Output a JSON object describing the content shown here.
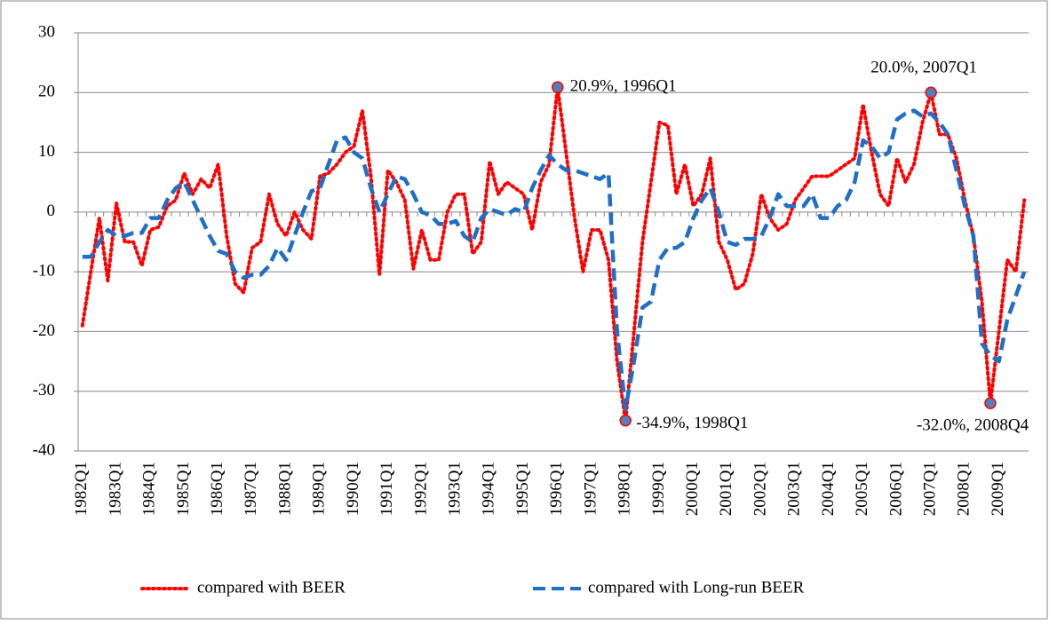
{
  "chart_data": {
    "type": "line",
    "categories": [
      "1982Q1",
      null,
      null,
      null,
      "1983Q1",
      null,
      null,
      null,
      "1984Q1",
      null,
      null,
      null,
      "1985Q1",
      null,
      null,
      null,
      "1986Q1",
      null,
      null,
      null,
      "1987Q1",
      null,
      null,
      null,
      "1988Q1",
      null,
      null,
      null,
      "1989Q1",
      null,
      null,
      null,
      "1990Q1",
      null,
      null,
      null,
      "1991Q1",
      null,
      null,
      null,
      "1992Q1",
      null,
      null,
      null,
      "1993Q1",
      null,
      null,
      null,
      "1994Q1",
      null,
      null,
      null,
      "1995Q1",
      null,
      null,
      null,
      "1996Q1",
      null,
      null,
      null,
      "1997Q1",
      null,
      null,
      null,
      "1998Q1",
      null,
      null,
      null,
      "1999Q1",
      null,
      null,
      null,
      "2000Q1",
      null,
      null,
      null,
      "2001Q1",
      null,
      null,
      null,
      "2002Q1",
      null,
      null,
      null,
      "2003Q1",
      null,
      null,
      null,
      "2004Q1",
      null,
      null,
      null,
      "2005Q1",
      null,
      null,
      null,
      "2006Q1",
      null,
      null,
      null,
      "2007Q1",
      null,
      null,
      null,
      "2008Q1",
      null,
      null,
      null,
      "2009Q1",
      null,
      null,
      null
    ],
    "series": [
      {
        "name": "compared with BEER",
        "color": "#ff0000",
        "dash": "dotted",
        "values": [
          -19,
          -10,
          -1,
          -11.5,
          1.5,
          -5,
          -5,
          -9,
          -3,
          -2.5,
          1,
          2,
          6.5,
          3,
          5.5,
          4,
          8,
          -4,
          -12,
          -13.5,
          -6,
          -5,
          3,
          -2,
          -4,
          0,
          -3,
          -4.5,
          6,
          6.5,
          8,
          10,
          11,
          17,
          6,
          -10.5,
          7,
          5,
          2,
          -9.5,
          -3,
          -8,
          -8,
          0,
          3,
          3,
          -7,
          -5,
          8.5,
          3,
          5,
          4,
          3,
          -3,
          5,
          8,
          20.9,
          10,
          -1,
          -10,
          -3,
          -3,
          -8,
          -25,
          -34.9,
          -20,
          -5,
          5,
          15,
          14.5,
          3,
          8,
          1,
          3,
          9,
          -5,
          -8,
          -13,
          -12,
          -7,
          3,
          -1,
          -3,
          -2,
          2,
          4,
          6,
          6,
          6,
          7,
          8,
          9,
          18,
          10,
          3,
          1,
          9,
          5,
          8,
          15,
          20.0,
          13,
          13,
          9,
          2,
          -4,
          -15,
          -32.0,
          -20,
          -8,
          -10,
          2
        ]
      },
      {
        "name": "compared with Long-run BEER",
        "color": "#1f6fc5",
        "dash": "dashed",
        "values": [
          -7.5,
          -7.5,
          -5,
          -3,
          -4,
          -4,
          -3.5,
          -3.5,
          -1,
          -1,
          2,
          4,
          5,
          2,
          -1,
          -4,
          -6.5,
          -7,
          -10,
          -11,
          -10.5,
          -10.5,
          -9,
          -6,
          -8,
          -4,
          0,
          3.5,
          4,
          8,
          12,
          12.5,
          10,
          9,
          4,
          0,
          3,
          6,
          5.5,
          3,
          0,
          -0.5,
          -2,
          -2,
          -1.5,
          -4,
          -5,
          -1,
          0.5,
          0,
          -0.5,
          0.5,
          0,
          4,
          7,
          9.5,
          8,
          7,
          7,
          6.5,
          6,
          5.5,
          6.5,
          -20,
          -33,
          -25,
          -16,
          -15,
          -8,
          -6,
          -6,
          -5,
          -1,
          2,
          4,
          0,
          -5,
          -5.5,
          -4.5,
          -4.5,
          -4,
          -1,
          3,
          1,
          1,
          1,
          3,
          -1,
          -1,
          1,
          2,
          5,
          12,
          11,
          9,
          10,
          15.5,
          16.5,
          17,
          16,
          16.5,
          15,
          13,
          7,
          1,
          -4,
          -22,
          -24,
          -25,
          -18,
          -14,
          -10
        ]
      }
    ],
    "annotations": [
      {
        "text": "20.9%, 1996Q1",
        "value": 20.9
      },
      {
        "text": "-34.9%, 1998Q1",
        "value": -34.9
      },
      {
        "text": "20.0%, 2007Q1",
        "value": 20.0
      },
      {
        "text": "-32.0%, 2008Q4",
        "value": -32.0
      }
    ],
    "ylim": [
      -40,
      30
    ],
    "yticks": [
      -40,
      -30,
      -20,
      -10,
      0,
      10,
      20,
      30
    ],
    "grid": true,
    "legend": "bottom"
  }
}
